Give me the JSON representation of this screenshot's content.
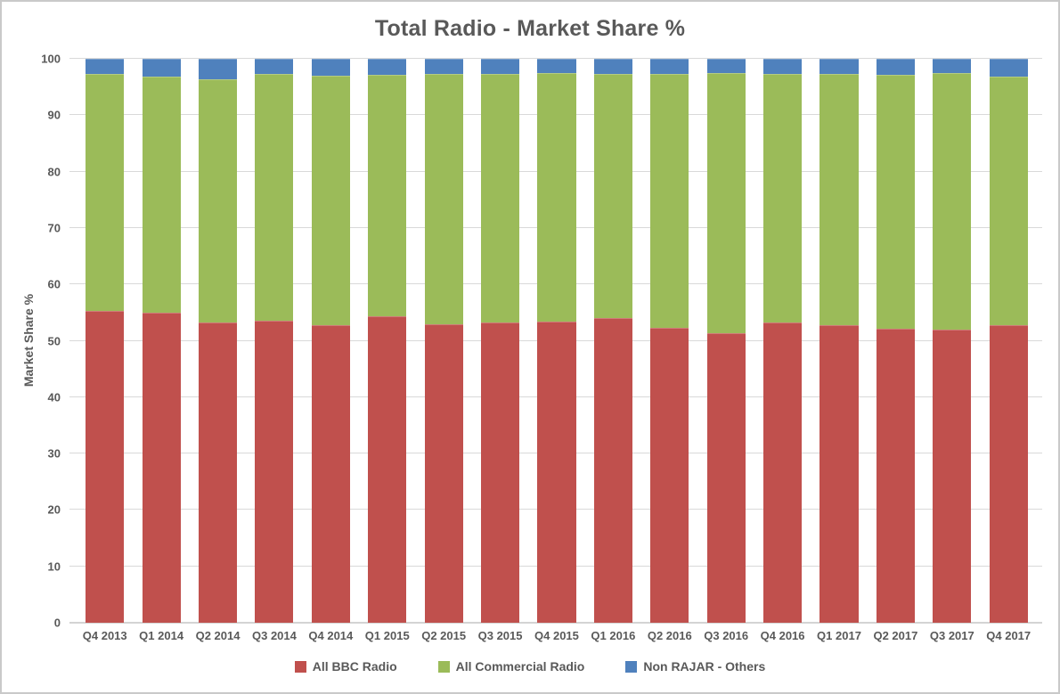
{
  "window": {
    "background": "#ffffff",
    "border_color": "#c9c9c9"
  },
  "chart_data": {
    "type": "bar",
    "stacked": true,
    "title": "Total Radio - Market Share %",
    "xlabel": "",
    "ylabel": "Market Share %",
    "ylim": [
      0,
      100
    ],
    "y_ticks": [
      0,
      10,
      20,
      30,
      40,
      50,
      60,
      70,
      80,
      90,
      100
    ],
    "grid": true,
    "legend_position": "bottom",
    "text_color": "#595959",
    "gridline_color": "#D9D9D9",
    "categories": [
      "Q4 2013",
      "Q1 2014",
      "Q2 2014",
      "Q3 2014",
      "Q4 2014",
      "Q1 2015",
      "Q2 2015",
      "Q3 2015",
      "Q4 2015",
      "Q1 2016",
      "Q2 2016",
      "Q3 2016",
      "Q4 2016",
      "Q1 2017",
      "Q2 2017",
      "Q3 2017",
      "Q4 2017"
    ],
    "series": [
      {
        "name": "All BBC Radio",
        "color": "#C0504D",
        "values": [
          55.3,
          54.9,
          53.2,
          53.6,
          52.8,
          54.3,
          52.9,
          53.2,
          53.4,
          54.0,
          52.3,
          51.4,
          53.3,
          52.7,
          52.2,
          52.0,
          52.8
        ]
      },
      {
        "name": "All Commercial Radio",
        "color": "#9BBB59",
        "values": [
          42.0,
          41.9,
          43.2,
          43.7,
          44.2,
          42.9,
          44.4,
          44.1,
          44.1,
          43.3,
          45.0,
          46.1,
          44.0,
          44.6,
          45.0,
          45.4,
          44.0
        ]
      },
      {
        "name": "Non RAJAR - Others",
        "color": "#4F81BD",
        "values": [
          2.7,
          3.2,
          3.6,
          2.7,
          3.0,
          2.8,
          2.7,
          2.7,
          2.5,
          2.7,
          2.7,
          2.5,
          2.7,
          2.7,
          2.8,
          2.6,
          3.2
        ]
      }
    ]
  }
}
